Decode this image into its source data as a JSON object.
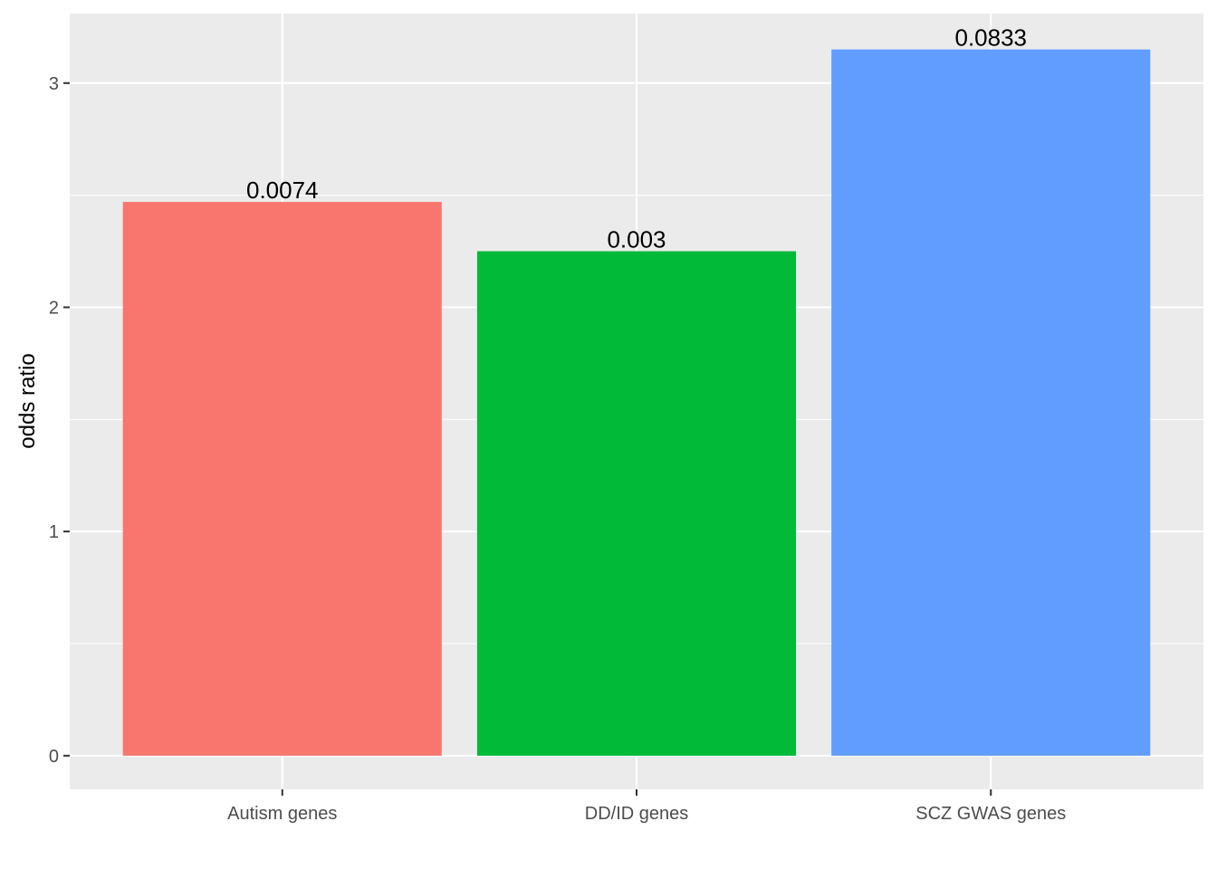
{
  "chart_data": {
    "type": "bar",
    "categories": [
      "Autism genes",
      "DD/ID genes",
      "SCZ GWAS genes"
    ],
    "values": [
      2.47,
      2.25,
      3.15
    ],
    "data_labels": [
      "0.0074",
      "0.003",
      "0.0833"
    ],
    "colors": [
      "#F8766D",
      "#00BA38",
      "#619CFF"
    ],
    "title": "",
    "xlabel": "",
    "ylabel": "odds ratio",
    "ylim": [
      -0.15,
      3.31
    ],
    "y_ticks": [
      0,
      1,
      2,
      3
    ],
    "y_tick_labels": [
      "0",
      "1",
      "2",
      "3"
    ],
    "grid": true,
    "legend": "none",
    "panel_background": "#EBEBEB",
    "gridline_color": "#FFFFFF",
    "tick_color": "#333333"
  }
}
